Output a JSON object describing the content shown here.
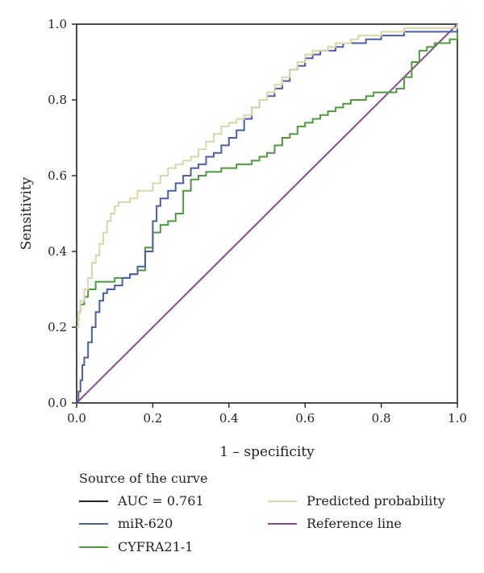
{
  "chart_data": {
    "type": "line",
    "xlabel": "1 – specificity",
    "ylabel": "Sensitivity",
    "xlim": [
      0,
      1
    ],
    "ylim": [
      0,
      1
    ],
    "x_ticks": [
      "0.0",
      "0.2",
      "0.4",
      "0.6",
      "0.8",
      "1.0"
    ],
    "y_ticks": [
      "0.0",
      "0.2",
      "0.4",
      "0.6",
      "0.8",
      "1.0"
    ],
    "grid": false,
    "legend": {
      "title": "Source of the curve",
      "placement": "bottom",
      "entries": [
        {
          "label": "AUC = 0.761",
          "color": "#222222"
        },
        {
          "label": "Predicted probability",
          "color": "#d9d6a8"
        },
        {
          "label": "miR-620",
          "color": "#4a5fa8"
        },
        {
          "label": "Reference line",
          "color": "#8b4a8c"
        },
        {
          "label": "CYFRA21-1",
          "color": "#4f9a3c"
        }
      ]
    },
    "series": [
      {
        "name": "Predicted probability",
        "color": "#d9d6a8",
        "x": [
          0.0,
          0.005,
          0.01,
          0.02,
          0.03,
          0.04,
          0.05,
          0.06,
          0.07,
          0.08,
          0.09,
          0.1,
          0.11,
          0.12,
          0.14,
          0.16,
          0.18,
          0.2,
          0.22,
          0.24,
          0.26,
          0.28,
          0.3,
          0.32,
          0.34,
          0.36,
          0.38,
          0.4,
          0.42,
          0.44,
          0.46,
          0.48,
          0.5,
          0.52,
          0.54,
          0.56,
          0.58,
          0.6,
          0.62,
          0.64,
          0.66,
          0.68,
          0.7,
          0.72,
          0.74,
          0.76,
          0.78,
          0.8,
          0.82,
          0.84,
          0.86,
          0.9,
          0.95,
          1.0
        ],
        "y": [
          0.2,
          0.24,
          0.27,
          0.3,
          0.33,
          0.37,
          0.39,
          0.42,
          0.45,
          0.48,
          0.5,
          0.52,
          0.53,
          0.53,
          0.54,
          0.56,
          0.56,
          0.58,
          0.6,
          0.62,
          0.63,
          0.64,
          0.65,
          0.67,
          0.69,
          0.71,
          0.73,
          0.74,
          0.75,
          0.76,
          0.78,
          0.8,
          0.82,
          0.84,
          0.86,
          0.88,
          0.9,
          0.92,
          0.93,
          0.93,
          0.94,
          0.95,
          0.95,
          0.96,
          0.97,
          0.97,
          0.97,
          0.98,
          0.98,
          0.98,
          0.99,
          0.99,
          0.99,
          1.0
        ]
      },
      {
        "name": "miR-620",
        "color": "#4a5fa8",
        "x": [
          0.0,
          0.005,
          0.01,
          0.015,
          0.02,
          0.03,
          0.04,
          0.05,
          0.06,
          0.07,
          0.08,
          0.1,
          0.12,
          0.14,
          0.16,
          0.18,
          0.2,
          0.21,
          0.22,
          0.24,
          0.26,
          0.28,
          0.3,
          0.32,
          0.34,
          0.36,
          0.38,
          0.4,
          0.42,
          0.44,
          0.46,
          0.48,
          0.5,
          0.52,
          0.54,
          0.56,
          0.58,
          0.6,
          0.62,
          0.64,
          0.66,
          0.68,
          0.7,
          0.72,
          0.76,
          0.8,
          0.86,
          0.9,
          0.95,
          1.0
        ],
        "y": [
          0.0,
          0.03,
          0.06,
          0.1,
          0.12,
          0.16,
          0.2,
          0.24,
          0.27,
          0.29,
          0.3,
          0.31,
          0.33,
          0.34,
          0.36,
          0.4,
          0.48,
          0.52,
          0.54,
          0.56,
          0.58,
          0.6,
          0.62,
          0.63,
          0.65,
          0.66,
          0.68,
          0.7,
          0.72,
          0.75,
          0.78,
          0.8,
          0.81,
          0.83,
          0.85,
          0.88,
          0.89,
          0.91,
          0.92,
          0.93,
          0.93,
          0.94,
          0.95,
          0.95,
          0.96,
          0.97,
          0.98,
          0.98,
          0.98,
          1.0
        ]
      },
      {
        "name": "CYFRA21-1",
        "color": "#4f9a3c",
        "x": [
          0.0,
          0.005,
          0.01,
          0.02,
          0.03,
          0.05,
          0.08,
          0.1,
          0.12,
          0.14,
          0.16,
          0.18,
          0.2,
          0.22,
          0.24,
          0.26,
          0.28,
          0.3,
          0.32,
          0.34,
          0.36,
          0.38,
          0.4,
          0.42,
          0.44,
          0.46,
          0.48,
          0.5,
          0.52,
          0.54,
          0.56,
          0.58,
          0.6,
          0.62,
          0.64,
          0.66,
          0.68,
          0.7,
          0.72,
          0.74,
          0.76,
          0.78,
          0.8,
          0.82,
          0.84,
          0.86,
          0.88,
          0.9,
          0.92,
          0.94,
          0.96,
          0.98,
          1.0
        ],
        "y": [
          0.22,
          0.24,
          0.26,
          0.28,
          0.3,
          0.32,
          0.32,
          0.33,
          0.33,
          0.34,
          0.35,
          0.41,
          0.45,
          0.47,
          0.48,
          0.5,
          0.56,
          0.59,
          0.6,
          0.61,
          0.61,
          0.62,
          0.62,
          0.63,
          0.63,
          0.64,
          0.65,
          0.66,
          0.68,
          0.7,
          0.71,
          0.73,
          0.74,
          0.75,
          0.76,
          0.77,
          0.78,
          0.79,
          0.8,
          0.8,
          0.81,
          0.82,
          0.82,
          0.82,
          0.83,
          0.86,
          0.9,
          0.93,
          0.94,
          0.95,
          0.95,
          0.96,
          1.0
        ]
      },
      {
        "name": "Reference line",
        "color": "#8b4a8c",
        "x": [
          0.0,
          1.0
        ],
        "y": [
          0.0,
          1.0
        ]
      }
    ]
  }
}
